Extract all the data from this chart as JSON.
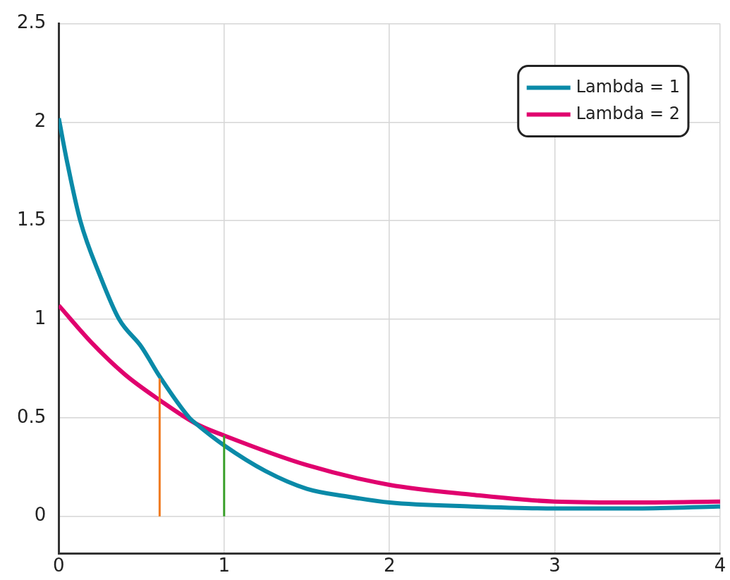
{
  "chart_data": {
    "type": "line",
    "xlim": [
      0,
      4
    ],
    "xticks": [
      0,
      1,
      2,
      3,
      4
    ],
    "ylim": [
      -0.19,
      2.5
    ],
    "yticks": [
      0,
      0.5,
      1,
      1.5,
      2,
      2.5
    ],
    "grid": true,
    "legend": "top right",
    "marker": "none",
    "line_style": "solid",
    "x": [
      0,
      0.05,
      0.13,
      0.25,
      0.365,
      0.5,
      0.61,
      0.79,
      0.83,
      1.0,
      1.25,
      1.5,
      1.75,
      2,
      2.5,
      3,
      3.5,
      4
    ],
    "series": [
      {
        "name": "Lambda = 1",
        "color": "#0a8aa8",
        "values": [
          2.02,
          1.8,
          1.5,
          1.22,
          1.0,
          0.86,
          0.71,
          0.5,
          0.47,
          0.36,
          0.23,
          0.14,
          0.1,
          0.07,
          0.05,
          0.04,
          0.04,
          0.05
        ]
      },
      {
        "name": "Lambda = 2",
        "color": "#e0006e",
        "x": [
          0,
          0.2,
          0.4,
          0.61,
          0.83,
          1.0,
          1.5,
          2,
          2.5,
          3,
          3.5,
          4
        ],
        "values": [
          1.07,
          0.88,
          0.72,
          0.59,
          0.47,
          0.41,
          0.26,
          0.16,
          0.11,
          0.075,
          0.07,
          0.075
        ]
      },
      {
        "color": "#f07a20",
        "x": [
          0.61,
          0.61
        ],
        "values": [
          0,
          0.7
        ]
      },
      {
        "color": "#3aa02a",
        "x": [
          1.0,
          1.0
        ],
        "values": [
          0,
          0.41
        ]
      }
    ]
  }
}
